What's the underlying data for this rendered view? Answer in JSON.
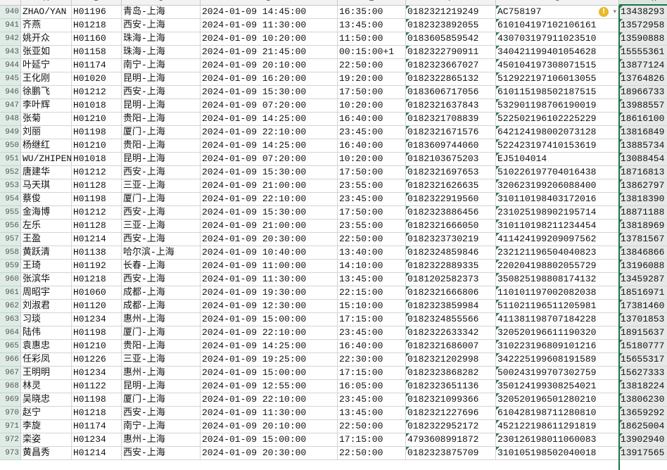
{
  "sheet": {
    "columns": [
      "A",
      "B",
      "C",
      "D",
      "E",
      "F",
      "G",
      "H"
    ],
    "selected_column": "H",
    "accent_color": "#217346",
    "warning_icon": {
      "cell": "G940",
      "icon": "warning-circle-icon",
      "symbol": "!",
      "dropdown": "▾"
    },
    "rows": [
      [
        "940",
        "ZHAO/YAN",
        "H01196",
        "青岛-上海",
        "2024-01-09 14:45:00",
        "16:35:00",
        "0182321219249",
        "AC758197",
        "13438293"
      ],
      [
        "941",
        "齐燕",
        "H01218",
        "西安-上海",
        "2024-01-09 11:30:00",
        "13:45:00",
        "0182323892055",
        "610104197102106161",
        "13572958"
      ],
      [
        "942",
        "姚开众",
        "H01160",
        "珠海-上海",
        "2024-01-09 10:20:00",
        "11:50:00",
        "0183605859542",
        "430703197911023510",
        "13590888"
      ],
      [
        "943",
        "张亚如",
        "H01158",
        "珠海-上海",
        "2024-01-09 21:45:00",
        "00:15:00+1",
        "0182322790911",
        "340421199401054628",
        "15555361"
      ],
      [
        "944",
        "叶延宁",
        "H01174",
        "南宁-上海",
        "2024-01-09 20:10:00",
        "22:50:00",
        "0182323667027",
        "450104197308071515",
        "13877124"
      ],
      [
        "945",
        "王化刚",
        "H01020",
        "昆明-上海",
        "2024-01-09 16:20:00",
        "19:20:00",
        "0182322865132",
        "512922197106013055",
        "13764826"
      ],
      [
        "946",
        "徐鹏飞",
        "H01212",
        "西安-上海",
        "2024-01-09 15:30:00",
        "17:50:00",
        "0183606717056",
        "610115198502187515",
        "18966733"
      ],
      [
        "947",
        "李叶辉",
        "H01018",
        "昆明-上海",
        "2024-01-09 07:20:00",
        "10:20:00",
        "0182321637843",
        "532901198706190019",
        "13988557"
      ],
      [
        "948",
        "张菊",
        "H01210",
        "贵阳-上海",
        "2024-01-09 14:25:00",
        "16:40:00",
        "0182321708839",
        "522502196102225229",
        "18616100"
      ],
      [
        "949",
        "刘丽",
        "H01198",
        "厦门-上海",
        "2024-01-09 22:10:00",
        "23:45:00",
        "0182321671576",
        "642124198002073128",
        "13816849"
      ],
      [
        "950",
        "杨继红",
        "H01210",
        "贵阳-上海",
        "2024-01-09 14:25:00",
        "16:40:00",
        "0183609744060",
        "522423197410153619",
        "13885734"
      ],
      [
        "951",
        "WU/ZHIPEN",
        "H01018",
        "昆明-上海",
        "2024-01-09 07:20:00",
        "10:20:00",
        "0182103675203",
        "EJ5104014",
        "13088454"
      ],
      [
        "952",
        "唐建华",
        "H01212",
        "西安-上海",
        "2024-01-09 15:30:00",
        "17:50:00",
        "0182321697653",
        "510226197704016438",
        "18716813"
      ],
      [
        "953",
        "马天琪",
        "H01128",
        "三亚-上海",
        "2024-01-09 21:00:00",
        "23:55:00",
        "0182321626635",
        "320623199206088400",
        "13862797"
      ],
      [
        "954",
        "蔡俊",
        "H01198",
        "厦门-上海",
        "2024-01-09 22:10:00",
        "23:45:00",
        "0182322919560",
        "310110198403172016",
        "13818390"
      ],
      [
        "955",
        "金海博",
        "H01212",
        "西安-上海",
        "2024-01-09 15:30:00",
        "17:50:00",
        "0182323886456",
        "231025198902195714",
        "18871188"
      ],
      [
        "956",
        "左乐",
        "H01128",
        "三亚-上海",
        "2024-01-09 21:00:00",
        "23:55:00",
        "0182321666050",
        "310110198211234454",
        "13818969"
      ],
      [
        "957",
        "王盈",
        "H01214",
        "西安-上海",
        "2024-01-09 20:30:00",
        "22:50:00",
        "0182323730219",
        "411424199209097562",
        "13781567"
      ],
      [
        "958",
        "黄跃清",
        "H01138",
        "哈尔滨-上海",
        "2024-01-09 10:40:00",
        "13:40:00",
        "0182324859846",
        "232121196504040823",
        "13846866"
      ],
      [
        "959",
        "王琦",
        "H01192",
        "长春-上海",
        "2024-01-09 11:00:00",
        "14:10:00",
        "0182322889335",
        "220204198802055729",
        "13196088"
      ],
      [
        "960",
        "张滨华",
        "H01218",
        "西安-上海",
        "2024-01-09 11:30:00",
        "13:45:00",
        "0181202582373",
        "350825198808174132",
        "13459287"
      ],
      [
        "961",
        "周昭宇",
        "H01060",
        "成都-上海",
        "2024-01-09 19:30:00",
        "22:15:00",
        "0182321666806",
        "110101197002082038",
        "18516971"
      ],
      [
        "962",
        "刘淑君",
        "H01120",
        "成都-上海",
        "2024-01-09 12:30:00",
        "15:10:00",
        "0182323859984",
        "511021196511205981",
        "17381460"
      ],
      [
        "963",
        "习琰",
        "H01234",
        "惠州-上海",
        "2024-01-09 15:00:00",
        "17:15:00",
        "0182324855566",
        "411381198707184228",
        "13701853"
      ],
      [
        "964",
        "陆伟",
        "H01198",
        "厦门-上海",
        "2024-01-09 22:10:00",
        "23:45:00",
        "0182322633342",
        "320520196611190320",
        "18915637"
      ],
      [
        "965",
        "袁惠忠",
        "H01210",
        "贵阳-上海",
        "2024-01-09 14:25:00",
        "16:40:00",
        "0182321686007",
        "310223196809101216",
        "15180777"
      ],
      [
        "966",
        "任彩凤",
        "H01226",
        "三亚-上海",
        "2024-01-09 19:25:00",
        "22:30:00",
        "0182321202998",
        "342225199608191589",
        "15655317"
      ],
      [
        "967",
        "王明明",
        "H01234",
        "惠州-上海",
        "2024-01-09 15:00:00",
        "17:15:00",
        "0182323868282",
        "500243199707302759",
        "15627333"
      ],
      [
        "968",
        "林灵",
        "H01122",
        "昆明-上海",
        "2024-01-09 12:55:00",
        "16:05:00",
        "0182323651136",
        "350124199308254021",
        "13818224"
      ],
      [
        "969",
        "吴晓忠",
        "H01198",
        "厦门-上海",
        "2024-01-09 22:10:00",
        "23:45:00",
        "0182321099366",
        "320520196501280210",
        "13806230"
      ],
      [
        "970",
        "赵宁",
        "H01218",
        "西安-上海",
        "2024-01-09 11:30:00",
        "13:45:00",
        "0182321227696",
        "610428198711280810",
        "13659292"
      ],
      [
        "971",
        "李旋",
        "H01174",
        "南宁-上海",
        "2024-01-09 20:10:00",
        "22:50:00",
        "0182322952172",
        "452122198611291819",
        "18625004"
      ],
      [
        "972",
        "栾姿",
        "H01234",
        "惠州-上海",
        "2024-01-09 15:00:00",
        "17:15:00",
        "4793608991872",
        "230126198011060083",
        "13902940"
      ],
      [
        "973",
        "黄昌秀",
        "H01214",
        "西安-上海",
        "2024-01-09 20:30:00",
        "22:50:00",
        "0182323875709",
        "310105198502040018",
        "13917565"
      ]
    ]
  }
}
